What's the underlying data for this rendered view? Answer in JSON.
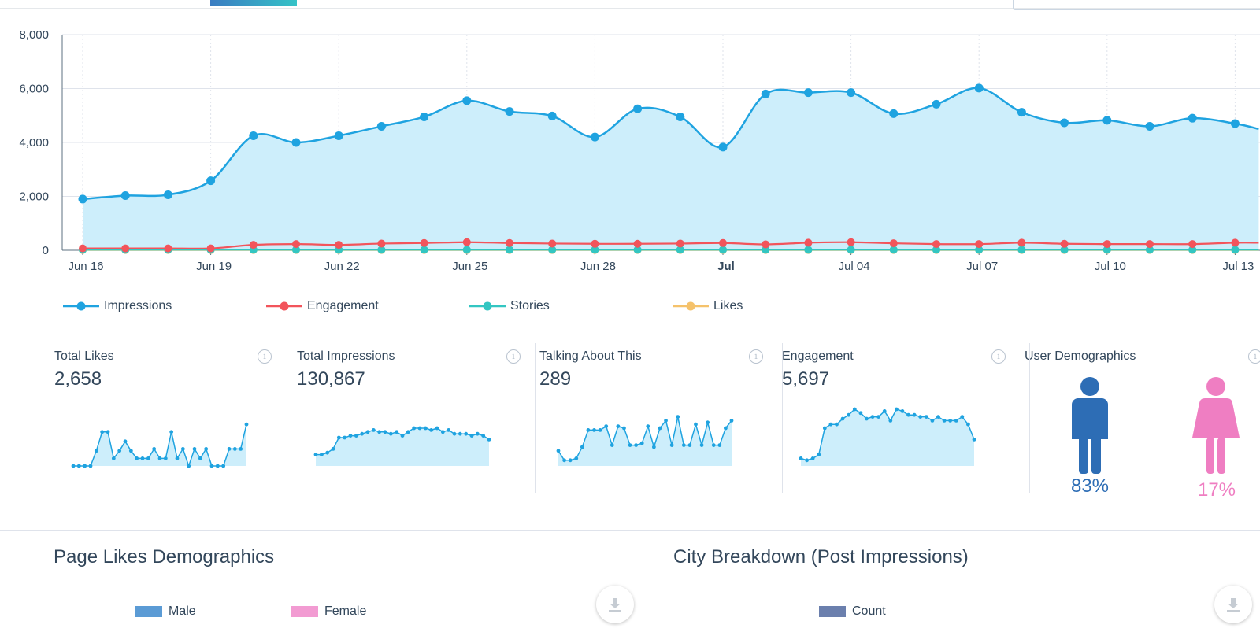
{
  "chart_data": [
    {
      "type": "area",
      "yticks": [
        "8,000",
        "6,000",
        "4,000",
        "2,000",
        "0"
      ],
      "ylim": [
        0,
        8000
      ],
      "xticks": [
        {
          "label": "Jun 16",
          "index": 0,
          "bold": false
        },
        {
          "label": "Jun 19",
          "index": 3,
          "bold": false
        },
        {
          "label": "Jun 22",
          "index": 6,
          "bold": false
        },
        {
          "label": "Jun 25",
          "index": 9,
          "bold": false
        },
        {
          "label": "Jun 28",
          "index": 12,
          "bold": false
        },
        {
          "label": "Jul",
          "index": 15,
          "bold": true
        },
        {
          "label": "Jul 04",
          "index": 18,
          "bold": false
        },
        {
          "label": "Jul 07",
          "index": 21,
          "bold": false
        },
        {
          "label": "Jul 10",
          "index": 24,
          "bold": false
        },
        {
          "label": "Jul 13",
          "index": 27,
          "bold": false
        }
      ],
      "grid": true,
      "legend_position": "bottom-left",
      "series": [
        {
          "name": "Impressions",
          "color": "#1fa3e0",
          "fill": "#cdeefb",
          "values": [
            1900,
            2030,
            2060,
            2580,
            4250,
            4000,
            4250,
            4600,
            4950,
            5550,
            5150,
            4980,
            4200,
            5250,
            4950,
            3830,
            5800,
            5850,
            5850,
            5070,
            5420,
            6020,
            5120,
            4730,
            4820,
            4600,
            4900,
            4700
          ]
        },
        {
          "name": "Engagement",
          "color": "#f2545b",
          "values": [
            70,
            70,
            70,
            70,
            200,
            230,
            200,
            250,
            270,
            300,
            270,
            250,
            240,
            240,
            250,
            270,
            220,
            280,
            300,
            260,
            230,
            230,
            280,
            240,
            230,
            230,
            230,
            280
          ]
        },
        {
          "name": "Stories",
          "color": "#33c6c2",
          "values": [
            20,
            20,
            20,
            20,
            20,
            20,
            20,
            20,
            20,
            20,
            20,
            20,
            20,
            20,
            20,
            20,
            20,
            20,
            20,
            20,
            20,
            20,
            20,
            20,
            20,
            20,
            20,
            20
          ]
        },
        {
          "name": "Likes",
          "color": "#f5c26b",
          "values": [
            10,
            10,
            10,
            10,
            10,
            10,
            10,
            10,
            10,
            10,
            10,
            10,
            10,
            10,
            10,
            10,
            10,
            10,
            10,
            10,
            10,
            10,
            10,
            10,
            10,
            10,
            10,
            10
          ]
        }
      ]
    },
    {
      "type": "area",
      "title": "Total Likes",
      "values": [
        0,
        0,
        0,
        0,
        0.4,
        0.9,
        0.9,
        0.2,
        0.4,
        0.65,
        0.4,
        0.2,
        0.2,
        0.2,
        0.45,
        0.2,
        0.2,
        0.9,
        0.2,
        0.45,
        0.0,
        0.45,
        0.2,
        0.45,
        0,
        0,
        0,
        0.45,
        0.45,
        0.45,
        1.1
      ]
    },
    {
      "type": "area",
      "title": "Total Impressions",
      "values": [
        0.3,
        0.3,
        0.35,
        0.45,
        0.75,
        0.75,
        0.8,
        0.8,
        0.85,
        0.9,
        0.95,
        0.9,
        0.9,
        0.85,
        0.9,
        0.8,
        0.9,
        1.0,
        1.0,
        1.0,
        0.95,
        1.0,
        0.9,
        0.95,
        0.85,
        0.85,
        0.85,
        0.8,
        0.85,
        0.8,
        0.7
      ]
    },
    {
      "type": "area",
      "title": "Talking About This",
      "values": [
        0.4,
        0.15,
        0.15,
        0.2,
        0.5,
        0.95,
        0.95,
        0.95,
        1.05,
        0.55,
        1.05,
        1.0,
        0.55,
        0.55,
        0.6,
        1.05,
        0.5,
        1.0,
        1.2,
        0.55,
        1.3,
        0.55,
        0.55,
        1.1,
        0.55,
        1.15,
        0.55,
        0.55,
        1.0,
        1.2
      ]
    },
    {
      "type": "area",
      "title": "Engagement",
      "values": [
        0.2,
        0.15,
        0.2,
        0.3,
        1.0,
        1.1,
        1.1,
        1.25,
        1.35,
        1.5,
        1.4,
        1.25,
        1.3,
        1.3,
        1.45,
        1.2,
        1.5,
        1.45,
        1.35,
        1.35,
        1.3,
        1.3,
        1.2,
        1.3,
        1.2,
        1.2,
        1.2,
        1.3,
        1.1,
        0.7
      ]
    }
  ],
  "legend": [
    {
      "label": "Impressions",
      "color": "#1fa3e0"
    },
    {
      "label": "Engagement",
      "color": "#f2545b"
    },
    {
      "label": "Stories",
      "color": "#33c6c2"
    },
    {
      "label": "Likes",
      "color": "#f5c26b"
    }
  ],
  "kpis": [
    {
      "title": "Total Likes",
      "value": "2,658"
    },
    {
      "title": "Total Impressions",
      "value": "130,867"
    },
    {
      "title": "Talking About This",
      "value": "289"
    },
    {
      "title": "Engagement",
      "value": "5,697"
    }
  ],
  "info_icon": "i",
  "demographics": {
    "title": "User Demographics",
    "male": {
      "percent": "83%",
      "value": 0.83,
      "color": "#2d6db5",
      "icon": "male-figure-icon"
    },
    "female": {
      "percent": "17%",
      "value": 0.17,
      "color": "#ef7ec2",
      "icon": "female-figure-icon"
    }
  },
  "page_likes": {
    "title": "Page Likes Demographics",
    "legend": [
      {
        "label": "Male",
        "color": "#5b9bd5"
      },
      {
        "label": "Female",
        "color": "#f29bd2"
      }
    ],
    "download_icon": "download-icon"
  },
  "city_breakdown": {
    "title": "City Breakdown (Post Impressions)",
    "legend": [
      {
        "label": "Count",
        "color": "#6b7fad"
      }
    ],
    "download_icon": "download-icon"
  }
}
